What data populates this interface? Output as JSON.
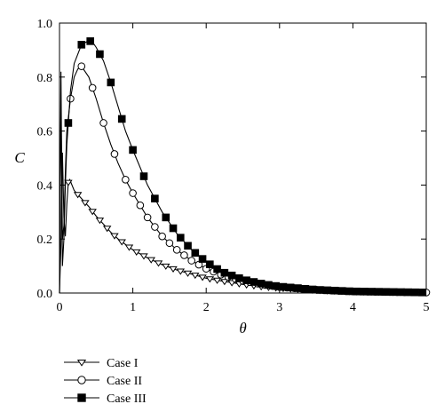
{
  "chart_data": {
    "type": "line",
    "title": "",
    "xlabel": "θ",
    "ylabel": "C",
    "xlim": [
      0,
      5
    ],
    "ylim": [
      0,
      1.0
    ],
    "x_ticks": [
      "0",
      "1",
      "2",
      "3",
      "4",
      "5"
    ],
    "y_ticks": [
      "0.0",
      "0.2",
      "0.4",
      "0.6",
      "0.8",
      "1.0"
    ],
    "grid": false,
    "legend_position": "below",
    "series": [
      {
        "name": "Case I",
        "marker": "triangle-down-open",
        "x": [
          0.0,
          0.02,
          0.04,
          0.06,
          0.08,
          0.1,
          0.12,
          0.14,
          0.2,
          0.3,
          0.4,
          0.5,
          0.6,
          0.7,
          0.8,
          0.9,
          1.0,
          1.2,
          1.4,
          1.6,
          1.8,
          2.0,
          2.2,
          2.5,
          2.8,
          3.0,
          3.5,
          4.0,
          4.5,
          5.0
        ],
        "y": [
          0.0,
          0.18,
          0.52,
          0.28,
          0.21,
          0.33,
          0.41,
          0.42,
          0.38,
          0.35,
          0.32,
          0.285,
          0.255,
          0.225,
          0.2,
          0.18,
          0.16,
          0.13,
          0.105,
          0.085,
          0.07,
          0.055,
          0.045,
          0.032,
          0.022,
          0.018,
          0.01,
          0.005,
          0.003,
          0.002
        ],
        "marker_x": [
          0.12,
          0.25,
          0.35,
          0.45,
          0.55,
          0.65,
          0.75,
          0.85,
          0.95,
          1.05,
          1.15,
          1.25,
          1.35,
          1.45,
          1.55,
          1.65,
          1.75,
          1.85,
          1.95,
          2.05,
          2.15,
          2.25,
          2.35,
          2.45,
          2.55,
          2.65,
          2.75,
          2.85,
          2.95,
          3.05,
          3.15,
          3.25,
          3.35,
          3.45,
          3.55,
          3.65,
          3.75,
          3.85,
          3.95,
          4.05,
          4.15,
          4.25,
          4.35,
          4.45,
          4.55,
          4.65,
          4.75,
          4.85,
          4.95
        ]
      },
      {
        "name": "Case II",
        "marker": "circle-open",
        "x": [
          0.0,
          0.02,
          0.04,
          0.06,
          0.08,
          0.1,
          0.15,
          0.2,
          0.25,
          0.3,
          0.4,
          0.5,
          0.6,
          0.7,
          0.8,
          0.9,
          1.0,
          1.2,
          1.4,
          1.6,
          1.8,
          2.0,
          2.2,
          2.5,
          2.8,
          3.0,
          3.5,
          4.0,
          4.5,
          5.0
        ],
        "y": [
          0.0,
          0.7,
          0.2,
          0.25,
          0.45,
          0.6,
          0.72,
          0.8,
          0.83,
          0.84,
          0.8,
          0.72,
          0.63,
          0.55,
          0.48,
          0.42,
          0.37,
          0.28,
          0.21,
          0.16,
          0.12,
          0.09,
          0.068,
          0.045,
          0.03,
          0.022,
          0.012,
          0.006,
          0.004,
          0.002
        ],
        "marker_x": [
          0.15,
          0.3,
          0.45,
          0.6,
          0.75,
          0.9,
          1.0,
          1.1,
          1.2,
          1.3,
          1.4,
          1.5,
          1.6,
          1.7,
          1.8,
          1.9,
          2.0,
          2.1,
          2.2,
          2.3,
          2.4,
          2.5,
          2.6,
          2.7,
          2.8,
          2.9,
          3.0,
          3.1,
          3.2,
          3.3,
          3.4,
          3.5,
          3.6,
          3.7,
          3.8,
          3.9,
          4.0,
          4.1,
          4.2,
          4.3,
          4.4,
          4.5,
          4.6,
          4.7,
          4.8,
          4.9,
          5.0
        ]
      },
      {
        "name": "Case III",
        "marker": "square-filled",
        "x": [
          0.0,
          0.02,
          0.04,
          0.06,
          0.08,
          0.1,
          0.15,
          0.2,
          0.3,
          0.4,
          0.45,
          0.5,
          0.6,
          0.7,
          0.8,
          0.9,
          1.0,
          1.2,
          1.4,
          1.6,
          1.8,
          2.0,
          2.2,
          2.5,
          2.8,
          3.0,
          3.5,
          4.0,
          4.5,
          5.0
        ],
        "y": [
          0.0,
          0.82,
          0.1,
          0.2,
          0.4,
          0.55,
          0.75,
          0.85,
          0.92,
          0.935,
          0.93,
          0.91,
          0.86,
          0.78,
          0.69,
          0.6,
          0.53,
          0.4,
          0.3,
          0.22,
          0.16,
          0.115,
          0.08,
          0.05,
          0.032,
          0.024,
          0.012,
          0.006,
          0.004,
          0.002
        ],
        "marker_x": [
          0.12,
          0.3,
          0.42,
          0.55,
          0.7,
          0.85,
          1.0,
          1.15,
          1.3,
          1.45,
          1.55,
          1.65,
          1.75,
          1.85,
          1.95,
          2.05,
          2.15,
          2.25,
          2.35,
          2.45,
          2.55,
          2.65,
          2.75,
          2.85,
          2.95,
          3.05,
          3.15,
          3.25,
          3.35,
          3.45,
          3.55,
          3.65,
          3.75,
          3.85,
          3.95,
          4.05,
          4.15,
          4.25,
          4.35,
          4.45,
          4.55,
          4.65,
          4.75,
          4.85,
          4.95
        ]
      }
    ]
  }
}
